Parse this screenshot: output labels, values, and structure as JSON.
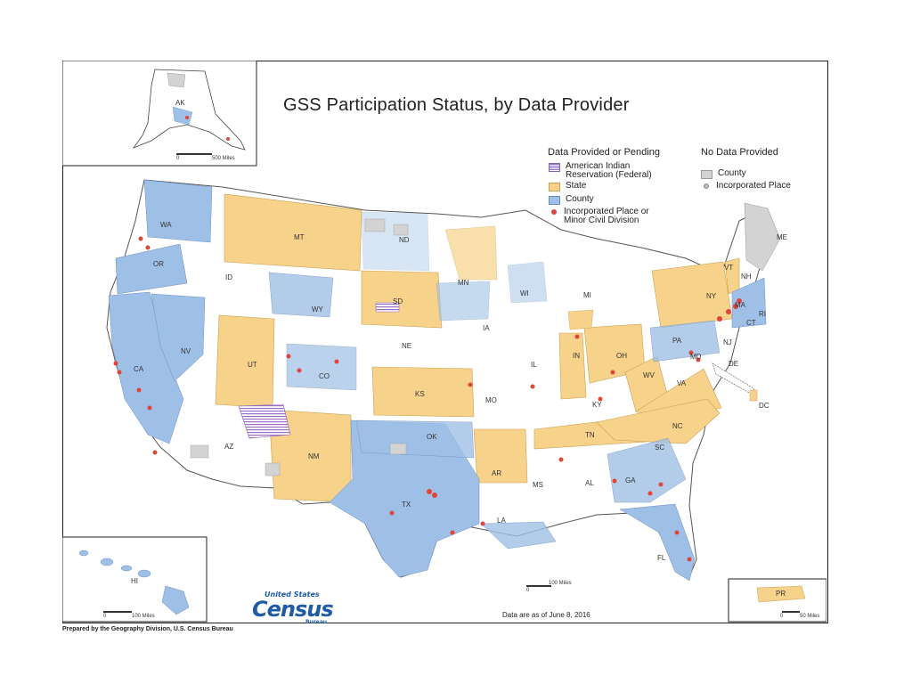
{
  "title": "GSS Participation Status, by Data Provider",
  "legend": {
    "provided_header": "Data Provided or Pending",
    "not_provided_header": "No Data Provided",
    "provided_items": [
      {
        "label": "American Indian Reservation (Federal)",
        "color": "#9b6fc8"
      },
      {
        "label": "State",
        "color": "#f6d28a"
      },
      {
        "label": "County",
        "color": "#9fc0e6"
      },
      {
        "label": "Incorporated Place or Minor Civil Division",
        "color": "#e0453a"
      }
    ],
    "not_provided_items": [
      {
        "label": "County",
        "color": "#d3d3d3"
      },
      {
        "label": "Incorporated Place",
        "color": "#bbbbbb"
      }
    ]
  },
  "state_labels": [
    "WA",
    "OR",
    "CA",
    "NV",
    "ID",
    "MT",
    "WY",
    "UT",
    "AZ",
    "CO",
    "NM",
    "ND",
    "SD",
    "NE",
    "KS",
    "OK",
    "TX",
    "MN",
    "IA",
    "MO",
    "AR",
    "LA",
    "WI",
    "IL",
    "MI",
    "IN",
    "OH",
    "KY",
    "TN",
    "MS",
    "AL",
    "GA",
    "FL",
    "SC",
    "NC",
    "VA",
    "WV",
    "PA",
    "NY",
    "VT",
    "NH",
    "ME",
    "MA",
    "CT",
    "RI",
    "NJ",
    "DE",
    "MD",
    "DC",
    "AK",
    "HI",
    "PR"
  ],
  "scales": {
    "alaska": "500 Miles",
    "hawaii": "100 Miles",
    "main": "100 Miles",
    "pr": "50 Miles",
    "zero": "0"
  },
  "footer": {
    "date_note": "Data are as of June 8, 2016",
    "prepared_by": "Prepared by the Geography Division, U.S. Census Bureau"
  },
  "logo": {
    "line1": "United States",
    "line2": "Census",
    "line3": "Bureau"
  }
}
